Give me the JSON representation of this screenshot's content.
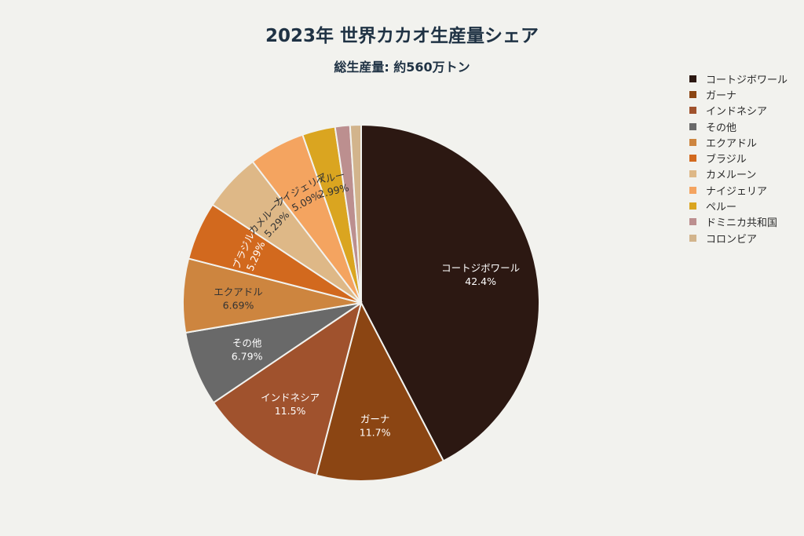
{
  "chart_data": {
    "type": "pie",
    "title": "2023年 世界カカオ生産量シェア",
    "subtitle": "総生産量: 約560万トン",
    "legend_position": "right",
    "slices": [
      {
        "label": "コートジボワール",
        "value": 42.4,
        "value_label": "42.4%",
        "color": "#2c1812",
        "text_color": "#ffffff"
      },
      {
        "label": "ガーナ",
        "value": 11.7,
        "value_label": "11.7%",
        "color": "#8b4513",
        "text_color": "#ffffff"
      },
      {
        "label": "インドネシア",
        "value": 11.5,
        "value_label": "11.5%",
        "color": "#a0522d",
        "text_color": "#ffffff"
      },
      {
        "label": "その他",
        "value": 6.79,
        "value_label": "6.79%",
        "color": "#696969",
        "text_color": "#ffffff"
      },
      {
        "label": "エクアドル",
        "value": 6.69,
        "value_label": "6.69%",
        "color": "#cd853f",
        "text_color": "#333333"
      },
      {
        "label": "ブラジル",
        "value": 5.29,
        "value_label": "5.29%",
        "color": "#d2691e",
        "text_color": "#ffffff"
      },
      {
        "label": "カメルーン",
        "value": 5.29,
        "value_label": "5.29%",
        "color": "#deb887",
        "text_color": "#333333"
      },
      {
        "label": "ナイジェリア",
        "value": 5.09,
        "value_label": "5.09%",
        "color": "#f4a460",
        "text_color": "#333333"
      },
      {
        "label": "ペルー",
        "value": 2.99,
        "value_label": "2.99%",
        "color": "#daa520",
        "text_color": "#333333"
      },
      {
        "label": "ドミニカ共和国",
        "value": 1.35,
        "value_label": "",
        "color": "#bc8f8f",
        "text_color": "#333333"
      },
      {
        "label": "コロンビア",
        "value": 1.0,
        "value_label": "",
        "color": "#d2b48c",
        "text_color": "#333333"
      }
    ]
  }
}
